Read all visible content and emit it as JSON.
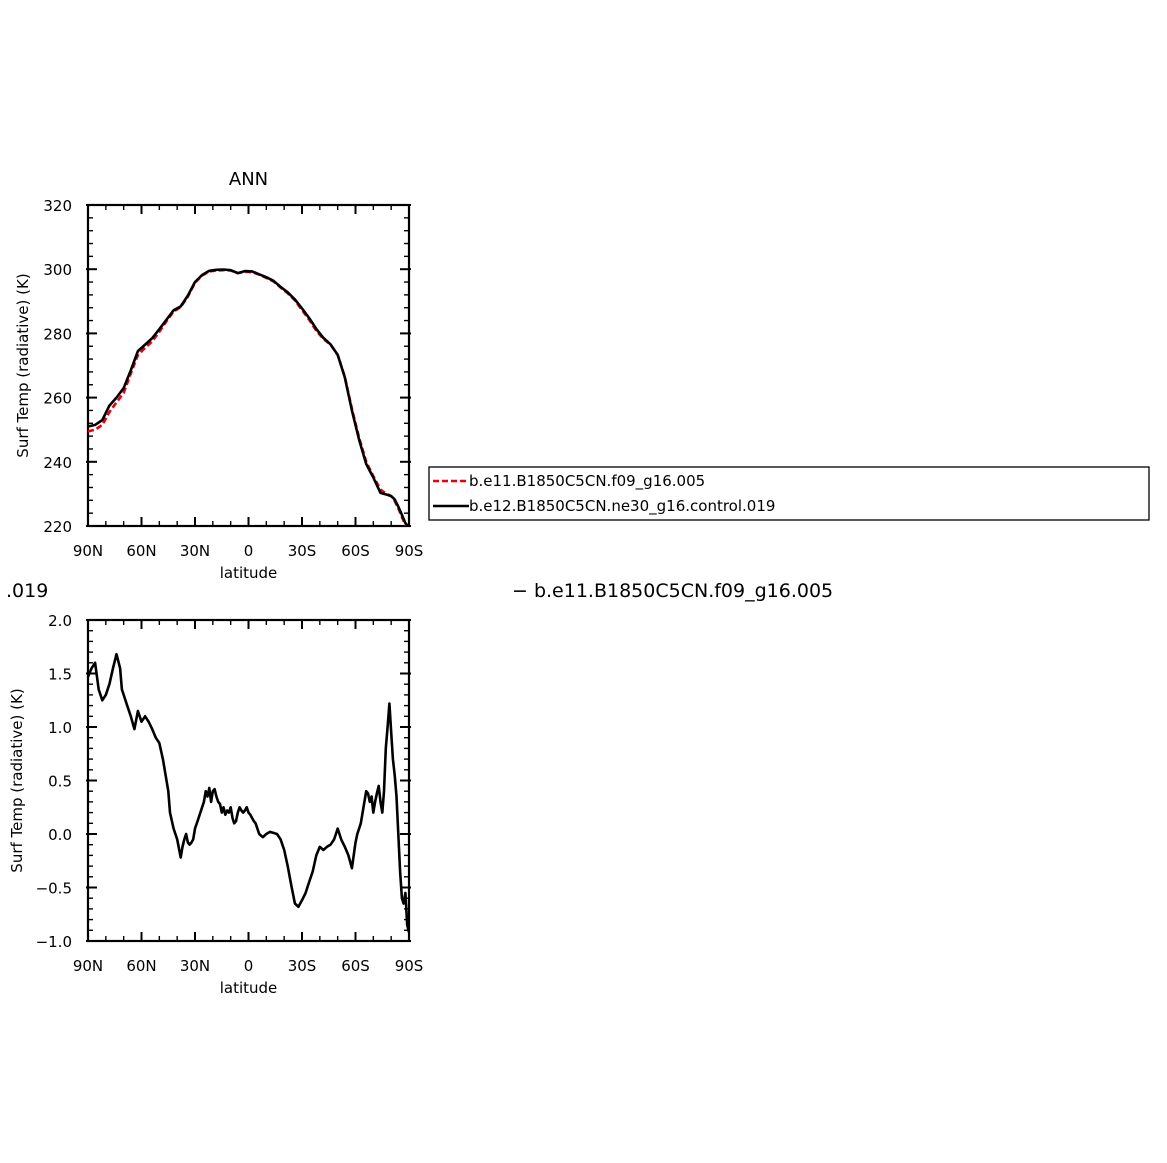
{
  "chart_data": [
    {
      "type": "line",
      "title": "ANN",
      "xlabel": "latitude",
      "ylabel": "Surf Temp (radiative) (K)",
      "xlim": [
        90,
        -90
      ],
      "ylim": [
        220,
        320
      ],
      "x_ticks": [
        90,
        60,
        30,
        0,
        -30,
        -60,
        -90
      ],
      "x_tick_labels": [
        "90N",
        "60N",
        "30N",
        "0",
        "30S",
        "60S",
        "90S"
      ],
      "y_ticks": [
        220,
        240,
        260,
        280,
        300,
        320
      ],
      "y_tick_labels": [
        "220",
        "240",
        "260",
        "280",
        "300",
        "320"
      ],
      "grid": false,
      "legend": "right",
      "series": [
        {
          "name": "b.e11.B1850C5CN.f09_g16.005",
          "color": "#e8000b",
          "dash": "dashed",
          "x": [
            90,
            86,
            82,
            78,
            74,
            70,
            66,
            62,
            58,
            54,
            50,
            46,
            42,
            38,
            34,
            30,
            26,
            22,
            18,
            14,
            10,
            6,
            2,
            -2,
            -6,
            -10,
            -14,
            -18,
            -22,
            -26,
            -30,
            -34,
            -38,
            -42,
            -46,
            -50,
            -54,
            -58,
            -62,
            -66,
            -70,
            -74,
            -78,
            -80,
            -82,
            -84,
            -86,
            -88,
            -90
          ],
          "y": [
            249.5,
            250.0,
            251.5,
            255.5,
            258.5,
            261.5,
            267.5,
            273.3,
            275.5,
            277.5,
            280.5,
            283.8,
            286.8,
            288.2,
            291.5,
            295.8,
            298.0,
            299.3,
            299.6,
            299.7,
            299.6,
            298.8,
            299.2,
            299.1,
            298.3,
            297.3,
            296.2,
            294.3,
            292.5,
            290.3,
            287.3,
            284.3,
            280.8,
            278.3,
            276.5,
            273.3,
            266.5,
            256.5,
            247.5,
            240.0,
            235.5,
            231.3,
            229.8,
            229.3,
            227.8,
            225.5,
            222.8,
            220.3,
            219.5
          ]
        },
        {
          "name": "b.e12.B1850C5CN.ne30_g16.control.019",
          "color": "#000000",
          "dash": "solid",
          "x": [
            90,
            86,
            82,
            78,
            74,
            70,
            66,
            62,
            58,
            54,
            50,
            46,
            42,
            38,
            34,
            30,
            26,
            22,
            18,
            14,
            10,
            6,
            2,
            -2,
            -6,
            -10,
            -14,
            -18,
            -22,
            -26,
            -30,
            -34,
            -38,
            -42,
            -46,
            -50,
            -54,
            -58,
            -62,
            -66,
            -70,
            -74,
            -78,
            -80,
            -82,
            -84,
            -86,
            -88,
            -90
          ],
          "y": [
            251.0,
            251.5,
            253.0,
            257.5,
            260.0,
            263.0,
            268.5,
            274.5,
            276.5,
            278.5,
            281.3,
            284.3,
            287.2,
            288.4,
            291.8,
            296.0,
            298.2,
            299.5,
            299.8,
            299.9,
            299.7,
            298.8,
            299.4,
            299.3,
            298.4,
            297.5,
            296.4,
            294.5,
            292.8,
            290.6,
            287.8,
            284.8,
            281.4,
            278.6,
            276.6,
            273.3,
            266.3,
            256.0,
            246.9,
            239.3,
            235.1,
            230.3,
            229.7,
            229.3,
            228.3,
            226.0,
            223.5,
            220.9,
            219.5
          ]
        }
      ]
    },
    {
      "type": "line",
      "title": "",
      "xlabel": "latitude",
      "ylabel": "Surf Temp (radiative) (K)",
      "xlim": [
        90,
        -90
      ],
      "ylim": [
        -1.0,
        2.0
      ],
      "x_ticks": [
        90,
        60,
        30,
        0,
        -30,
        -60,
        -90
      ],
      "x_tick_labels": [
        "90N",
        "60N",
        "30N",
        "0",
        "30S",
        "60S",
        "90S"
      ],
      "y_ticks": [
        -1.0,
        -0.5,
        0.0,
        0.5,
        1.0,
        1.5,
        2.0
      ],
      "y_tick_labels": [
        "−1.0",
        "−0.5",
        "0.0",
        "0.5",
        "1.0",
        "1.5",
        "2.0"
      ],
      "grid": false,
      "series": [
        {
          "color": "#000000",
          "dash": "solid",
          "x": [
            90,
            88,
            86,
            84,
            82,
            80,
            78,
            76,
            74,
            72,
            71,
            70,
            68,
            66,
            64,
            62,
            60,
            58,
            56,
            54,
            52,
            50,
            48,
            46,
            45,
            44,
            42,
            40,
            38,
            37,
            36,
            35,
            34,
            33,
            32,
            31,
            30,
            29,
            28,
            26,
            25,
            24,
            23,
            22,
            21,
            20,
            19,
            18,
            17,
            16,
            15,
            14,
            13,
            12,
            11,
            10,
            9,
            8,
            7,
            6,
            5,
            4,
            3,
            2,
            1,
            0,
            -1,
            -2,
            -3,
            -4,
            -6,
            -8,
            -10,
            -12,
            -14,
            -16,
            -18,
            -20,
            -22,
            -24,
            -26,
            -28,
            -30,
            -32,
            -34,
            -36,
            -38,
            -40,
            -42,
            -44,
            -46,
            -48,
            -50,
            -52,
            -54,
            -56,
            -58,
            -59,
            -60,
            -61,
            -62,
            -63,
            -64,
            -65,
            -66,
            -67,
            -68,
            -69,
            -70,
            -71,
            -72,
            -73,
            -74,
            -75,
            -76,
            -77,
            -78,
            -79,
            -80,
            -81,
            -82,
            -83,
            -84,
            -85,
            -86,
            -87,
            -88,
            -89,
            -90
          ],
          "y": [
            1.47,
            1.55,
            1.6,
            1.35,
            1.25,
            1.3,
            1.4,
            1.55,
            1.68,
            1.55,
            1.35,
            1.3,
            1.2,
            1.1,
            0.98,
            1.15,
            1.05,
            1.1,
            1.05,
            0.98,
            0.9,
            0.85,
            0.7,
            0.5,
            0.4,
            0.2,
            0.05,
            -0.05,
            -0.22,
            -0.12,
            -0.05,
            0.0,
            -0.08,
            -0.1,
            -0.08,
            -0.05,
            0.05,
            0.1,
            0.15,
            0.25,
            0.3,
            0.4,
            0.35,
            0.43,
            0.3,
            0.4,
            0.42,
            0.35,
            0.3,
            0.28,
            0.2,
            0.25,
            0.18,
            0.22,
            0.2,
            0.25,
            0.15,
            0.1,
            0.12,
            0.2,
            0.25,
            0.22,
            0.2,
            0.22,
            0.25,
            0.2,
            0.18,
            0.15,
            0.12,
            0.1,
            0.0,
            -0.03,
            0.0,
            0.02,
            0.01,
            0.0,
            -0.05,
            -0.15,
            -0.3,
            -0.48,
            -0.65,
            -0.68,
            -0.62,
            -0.55,
            -0.45,
            -0.35,
            -0.2,
            -0.12,
            -0.15,
            -0.12,
            -0.1,
            -0.05,
            0.05,
            -0.05,
            -0.12,
            -0.2,
            -0.32,
            -0.2,
            -0.08,
            0.0,
            0.05,
            0.1,
            0.2,
            0.3,
            0.4,
            0.38,
            0.3,
            0.35,
            0.2,
            0.3,
            0.38,
            0.45,
            0.3,
            0.2,
            0.4,
            0.8,
            1.0,
            1.22,
            0.95,
            0.7,
            0.55,
            0.35,
            0.0,
            -0.35,
            -0.6,
            -0.65,
            -0.55,
            -0.85,
            -0.92
          ]
        }
      ]
    }
  ],
  "legend_box": {
    "entries": [
      {
        "label": "b.e11.B1850C5CN.f09_g16.005",
        "color": "#e8000b",
        "dash": "dashed"
      },
      {
        "label": "b.e12.B1850C5CN.ne30_g16.control.019",
        "color": "#000000",
        "dash": "solid"
      }
    ]
  },
  "stray_text": {
    "left": ".019",
    "right": "− b.e11.B1850C5CN.f09_g16.005"
  }
}
